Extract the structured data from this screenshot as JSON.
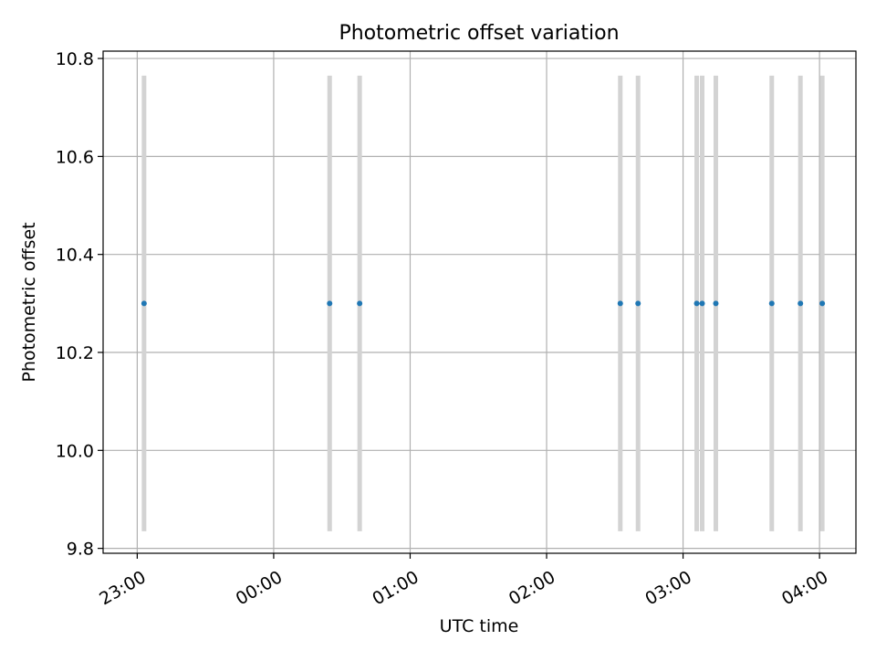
{
  "chart_data": {
    "type": "scatter",
    "title": "Photometric offset variation",
    "xlabel": "UTC time",
    "ylabel": "Photometric offset",
    "x_axis": {
      "unit": "hours relative to 00:00 UTC",
      "range": [
        -1.25,
        4.2667
      ],
      "ticks": [
        {
          "value": -1,
          "label": "23:00"
        },
        {
          "value": 0,
          "label": "00:00"
        },
        {
          "value": 1,
          "label": "01:00"
        },
        {
          "value": 2,
          "label": "02:00"
        },
        {
          "value": 3,
          "label": "03:00"
        },
        {
          "value": 4,
          "label": "04:00"
        }
      ],
      "tick_label_rotation": "rotated ~30°"
    },
    "y_axis": {
      "range": [
        9.79,
        10.815
      ],
      "ticks": [
        {
          "value": 9.8,
          "label": "9.8"
        },
        {
          "value": 10.0,
          "label": "10.0"
        },
        {
          "value": 10.2,
          "label": "10.2"
        },
        {
          "value": 10.4,
          "label": "10.4"
        },
        {
          "value": 10.6,
          "label": "10.6"
        },
        {
          "value": 10.8,
          "label": "10.8"
        }
      ]
    },
    "grid": true,
    "series": [
      {
        "color": "#1f77b4",
        "errorbar_color": "#d3d3d3",
        "points": [
          {
            "x": -0.95,
            "y": 10.3,
            "yerr_low": 9.835,
            "yerr_high": 10.765
          },
          {
            "x": 0.41,
            "y": 10.3,
            "yerr_low": 9.835,
            "yerr_high": 10.765
          },
          {
            "x": 0.63,
            "y": 10.3,
            "yerr_low": 9.835,
            "yerr_high": 10.765
          },
          {
            "x": 2.54,
            "y": 10.3,
            "yerr_low": 9.835,
            "yerr_high": 10.765
          },
          {
            "x": 2.67,
            "y": 10.3,
            "yerr_low": 9.835,
            "yerr_high": 10.765
          },
          {
            "x": 3.1,
            "y": 10.3,
            "yerr_low": 9.835,
            "yerr_high": 10.765
          },
          {
            "x": 3.14,
            "y": 10.3,
            "yerr_low": 9.835,
            "yerr_high": 10.765
          },
          {
            "x": 3.24,
            "y": 10.3,
            "yerr_low": 9.835,
            "yerr_high": 10.765
          },
          {
            "x": 3.65,
            "y": 10.3,
            "yerr_low": 9.835,
            "yerr_high": 10.765
          },
          {
            "x": 3.86,
            "y": 10.3,
            "yerr_low": 9.835,
            "yerr_high": 10.765
          },
          {
            "x": 4.02,
            "y": 10.3,
            "yerr_low": 9.835,
            "yerr_high": 10.765
          }
        ]
      }
    ]
  }
}
